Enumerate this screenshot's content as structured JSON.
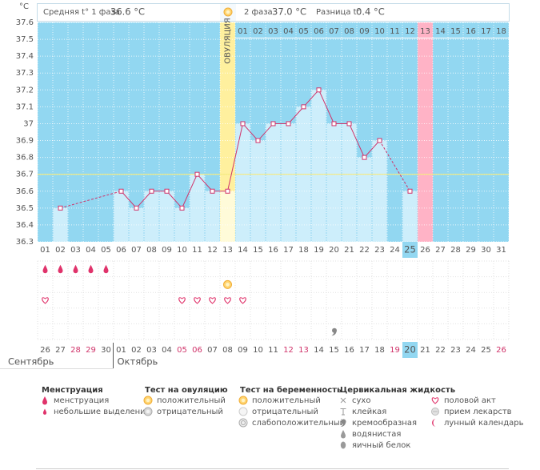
{
  "header": {
    "unit": "°C",
    "phase1_label": "Средняя t° 1 фаза",
    "phase1_value": "36.6 °C",
    "phase2_label": "2 фаза",
    "phase2_value": "37.0 °C",
    "diff_label": "Разница t°",
    "diff_value": "0.4 °C"
  },
  "chart_data": {
    "type": "line",
    "categories": [
      "01",
      "02",
      "03",
      "04",
      "05",
      "06",
      "07",
      "08",
      "09",
      "10",
      "11",
      "12",
      "13",
      "14",
      "15",
      "16",
      "17",
      "18",
      "19",
      "20",
      "21",
      "22",
      "23",
      "24",
      "25",
      "26",
      "27",
      "28",
      "29",
      "30",
      "31"
    ],
    "values": [
      null,
      36.5,
      null,
      null,
      null,
      36.6,
      36.5,
      36.6,
      36.6,
      36.5,
      36.7,
      36.6,
      36.6,
      37,
      36.9,
      37,
      37,
      37.1,
      37.2,
      37,
      37,
      36.8,
      36.9,
      null,
      36.6,
      null,
      null,
      null,
      null,
      null,
      null
    ],
    "ylim": [
      36.3,
      37.6
    ],
    "yticks": [
      36.3,
      36.4,
      36.5,
      36.6,
      36.7,
      36.8,
      36.9,
      37,
      37.1,
      37.2,
      37.3,
      37.4,
      37.5,
      37.6
    ],
    "cover_line": 36.7,
    "ovulation_day": 13,
    "ovulation_label": "ОВУЛЯЦИЯ",
    "phase2_days": [
      "01",
      "02",
      "03",
      "04",
      "05",
      "06",
      "07",
      "08",
      "09",
      "10",
      "11",
      "12",
      "13",
      "14",
      "15",
      "16",
      "17",
      "18"
    ],
    "marked_day": 26,
    "today": 25,
    "line_color": "#d0336a",
    "bar_color": "#cdeefb",
    "grid": true
  },
  "icon_rows": [
    {
      "icon": "drop",
      "days": [
        1,
        2,
        3,
        4,
        5
      ]
    },
    {
      "icon": "sun",
      "days": [
        13
      ]
    },
    {
      "icon": "heart",
      "days": [
        1,
        10,
        11,
        12,
        13,
        14
      ]
    },
    {
      "days": []
    },
    {
      "icon": "cream",
      "days": [
        20
      ]
    }
  ],
  "dates": [
    "26",
    "27",
    "28",
    "29",
    "30",
    "01",
    "02",
    "03",
    "04",
    "05",
    "06",
    "07",
    "08",
    "09",
    "10",
    "11",
    "12",
    "13",
    "14",
    "15",
    "16",
    "17",
    "18",
    "19",
    "20",
    "21",
    "22",
    "23",
    "24",
    "25",
    "26"
  ],
  "dates_weekend": [
    false,
    false,
    true,
    true,
    false,
    false,
    false,
    false,
    false,
    true,
    true,
    false,
    false,
    false,
    false,
    false,
    true,
    true,
    false,
    false,
    false,
    false,
    false,
    true,
    false,
    false,
    false,
    false,
    false,
    false,
    true
  ],
  "months": [
    "Сентябрь",
    "Октябрь"
  ],
  "month_break": 6,
  "legend": [
    {
      "title": "Менструация",
      "items": [
        {
          "icon": "drop",
          "label": "менструация"
        },
        {
          "icon": "dropsm",
          "label": "небольшие выделения"
        }
      ]
    },
    {
      "title": "Тест на овуляцию",
      "items": [
        {
          "icon": "sun",
          "label": "положительный"
        },
        {
          "icon": "sunneg",
          "label": "отрицательный"
        }
      ]
    },
    {
      "title": "Тест на беременность",
      "items": [
        {
          "icon": "sun",
          "label": "положительный"
        },
        {
          "icon": "pregneg",
          "label": "отрицательный"
        },
        {
          "icon": "pregweak",
          "label": "слабоположительный"
        }
      ]
    },
    {
      "title": "Цервикальная жидкость",
      "items": [
        {
          "icon": "cross",
          "label": "сухо"
        },
        {
          "icon": "sticky",
          "label": "клейкая"
        },
        {
          "icon": "cream",
          "label": "кремообразная"
        },
        {
          "icon": "water",
          "label": "водянистая"
        },
        {
          "icon": "egg",
          "label": "яичный белок"
        }
      ]
    },
    {
      "items": [
        {
          "icon": "heart",
          "label": "половой акт"
        },
        {
          "icon": "pill",
          "label": "прием лекарств"
        },
        {
          "icon": "moon",
          "label": "лунный календарь"
        }
      ]
    }
  ]
}
